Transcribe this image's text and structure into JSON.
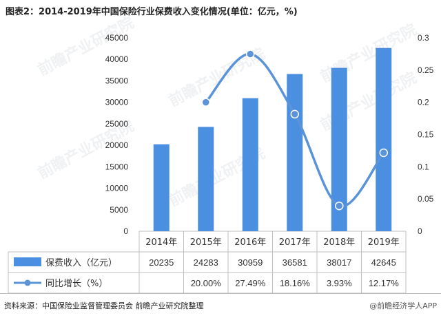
{
  "title": "图表2：2014-2019年中国保险行业保费收入变化情况(单位：亿元，%)",
  "source": "资料来源：中国保险业监督管理委员会 前瞻产业研究院整理",
  "credit": "@前瞻经济学人APP",
  "watermark": "前瞻产业研究院",
  "colors": {
    "bar": "#4a8fe0",
    "line": "#5b93d8",
    "grid": "#d9d9d9",
    "table_border": "#bfbfbf"
  },
  "chart_data": {
    "type": "bar",
    "categories": [
      "2014年",
      "2015年",
      "2016年",
      "2017年",
      "2018年",
      "2019年"
    ],
    "series": [
      {
        "name": "保费收入（亿元）",
        "type": "bar",
        "axis": "left",
        "values": [
          20235,
          24283,
          30959,
          36581,
          38017,
          42645
        ],
        "labels": [
          "20235",
          "24283",
          "30959",
          "36581",
          "38017",
          "42645"
        ]
      },
      {
        "name": "同比增长（%）",
        "type": "line",
        "axis": "right",
        "values": [
          null,
          0.2,
          0.2749,
          0.1816,
          0.0393,
          0.1217
        ],
        "labels": [
          "",
          "20.00%",
          "27.49%",
          "18.16%",
          "3.93%",
          "12.17%"
        ]
      }
    ],
    "y_left": {
      "min": 0,
      "max": 45000,
      "ticks": [
        "0",
        "5000",
        "10000",
        "15000",
        "20000",
        "25000",
        "30000",
        "35000",
        "40000",
        "45000"
      ]
    },
    "y_right": {
      "min": 0,
      "max": 0.3,
      "ticks": [
        "0",
        "0.05",
        "0.1",
        "0.15",
        "0.2",
        "0.25",
        "0.3"
      ]
    },
    "grid": false,
    "legend": "data-table"
  }
}
